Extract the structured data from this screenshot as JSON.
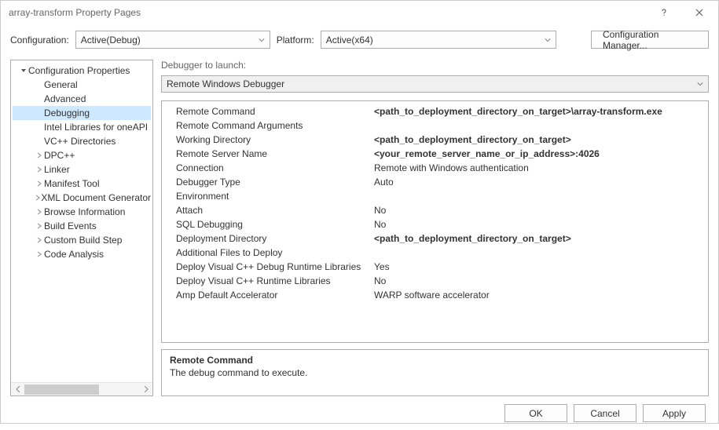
{
  "window": {
    "title": "array-transform Property Pages"
  },
  "toprow": {
    "configuration_label": "Configuration:",
    "configuration_value": "Active(Debug)",
    "platform_label": "Platform:",
    "platform_value": "Active(x64)",
    "config_manager": "Configuration Manager..."
  },
  "tree": {
    "root": "Configuration Properties",
    "items": [
      {
        "label": "General",
        "expandable": false
      },
      {
        "label": "Advanced",
        "expandable": false
      },
      {
        "label": "Debugging",
        "expandable": false,
        "selected": true
      },
      {
        "label": "Intel Libraries for oneAPI",
        "expandable": false
      },
      {
        "label": "VC++ Directories",
        "expandable": false
      },
      {
        "label": "DPC++",
        "expandable": true
      },
      {
        "label": "Linker",
        "expandable": true
      },
      {
        "label": "Manifest Tool",
        "expandable": true
      },
      {
        "label": "XML Document Generator",
        "expandable": true
      },
      {
        "label": "Browse Information",
        "expandable": true
      },
      {
        "label": "Build Events",
        "expandable": true
      },
      {
        "label": "Custom Build Step",
        "expandable": true
      },
      {
        "label": "Code Analysis",
        "expandable": true
      }
    ]
  },
  "launcher": {
    "label": "Debugger to launch:",
    "value": "Remote Windows Debugger"
  },
  "grid": [
    {
      "label": "Remote Command",
      "value": "<path_to_deployment_directory_on_target>\\array-transform.exe",
      "bold": true
    },
    {
      "label": "Remote Command Arguments",
      "value": ""
    },
    {
      "label": "Working Directory",
      "value": "<path_to_deployment_directory_on_target>",
      "bold": true
    },
    {
      "label": "Remote Server Name",
      "value": "<your_remote_server_name_or_ip_address>:4026",
      "bold": true
    },
    {
      "label": "Connection",
      "value": "Remote with Windows authentication"
    },
    {
      "label": "Debugger Type",
      "value": "Auto"
    },
    {
      "label": "Environment",
      "value": ""
    },
    {
      "label": "Attach",
      "value": "No"
    },
    {
      "label": "SQL Debugging",
      "value": "No"
    },
    {
      "label": "Deployment Directory",
      "value": "<path_to_deployment_directory_on_target>",
      "bold": true
    },
    {
      "label": "Additional Files to Deploy",
      "value": ""
    },
    {
      "label": "Deploy Visual C++ Debug Runtime Libraries",
      "value": "Yes"
    },
    {
      "label": "Deploy Visual C++ Runtime Libraries",
      "value": "No"
    },
    {
      "label": "Amp Default Accelerator",
      "value": "WARP software accelerator"
    }
  ],
  "desc": {
    "title": "Remote Command",
    "text": "The debug command to execute."
  },
  "footer": {
    "ok": "OK",
    "cancel": "Cancel",
    "apply": "Apply"
  }
}
